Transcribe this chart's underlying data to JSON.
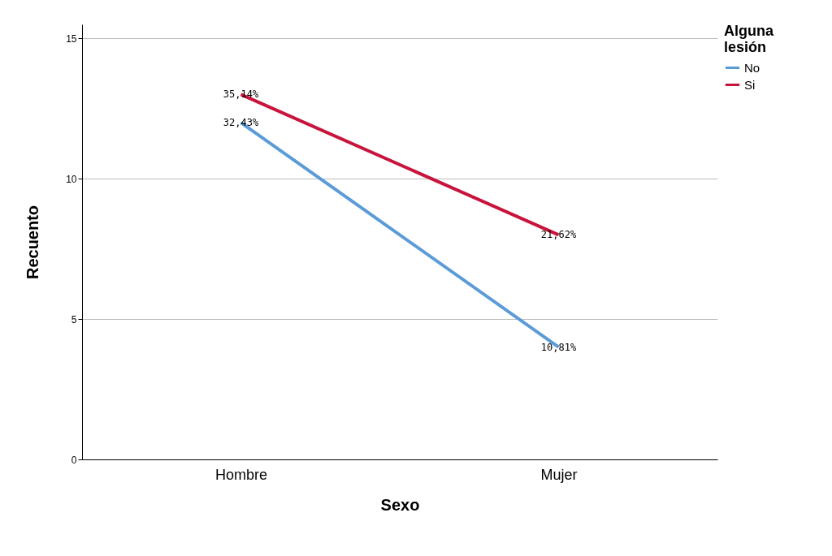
{
  "chart_data": {
    "type": "line",
    "xlabel": "Sexo",
    "ylabel": "Recuento",
    "legend_title": "Alguna lesión",
    "categories": [
      "Hombre",
      "Mujer"
    ],
    "series": [
      {
        "name": "No",
        "color": "#5b9bd8",
        "values": [
          12,
          4
        ]
      },
      {
        "name": "Si",
        "color": "#c8143c",
        "values": [
          13,
          8
        ]
      }
    ],
    "annotations": [
      {
        "text": "35,14%",
        "x": "Hombre",
        "y": 13
      },
      {
        "text": "32,43%",
        "x": "Hombre",
        "y": 12
      },
      {
        "text": "21,62%",
        "x": "Mujer",
        "y": 8
      },
      {
        "text": "10,81%",
        "x": "Mujer",
        "y": 4
      }
    ],
    "ylim": [
      0,
      15.5
    ],
    "yticks": [
      0,
      5,
      10,
      15
    ],
    "grid": "y",
    "legend": "top right",
    "marker": "none",
    "line_style": "solid"
  }
}
